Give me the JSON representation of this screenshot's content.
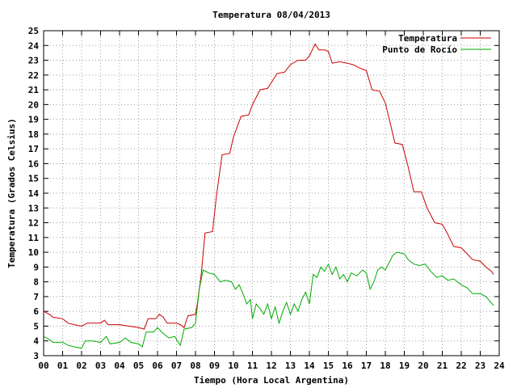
{
  "chart_data": {
    "type": "line",
    "title": "Temperatura 08/04/2013",
    "xlabel": "Tiempo (Hora Local Argentina)",
    "ylabel": "Temperatura (Grados Celsius)",
    "xlim": [
      0,
      24
    ],
    "ylim": [
      3,
      25
    ],
    "x_ticks": [
      "00",
      "01",
      "02",
      "03",
      "04",
      "05",
      "06",
      "07",
      "08",
      "09",
      "10",
      "11",
      "12",
      "13",
      "14",
      "15",
      "16",
      "17",
      "18",
      "19",
      "20",
      "21",
      "22",
      "23",
      "24"
    ],
    "y_ticks": [
      3,
      4,
      5,
      6,
      7,
      8,
      9,
      10,
      11,
      12,
      13,
      14,
      15,
      16,
      17,
      18,
      19,
      20,
      21,
      22,
      23,
      24,
      25
    ],
    "grid": true,
    "legend_position": "top-right",
    "series": [
      {
        "name": "Temperatura",
        "color": "#cc0000",
        "points": [
          [
            0.0,
            6.0
          ],
          [
            0.3,
            5.8
          ],
          [
            0.5,
            5.6
          ],
          [
            1.0,
            5.5
          ],
          [
            1.3,
            5.2
          ],
          [
            1.6,
            5.1
          ],
          [
            2.0,
            5.0
          ],
          [
            2.3,
            5.2
          ],
          [
            3.0,
            5.2
          ],
          [
            3.2,
            5.4
          ],
          [
            3.4,
            5.1
          ],
          [
            4.0,
            5.1
          ],
          [
            4.5,
            5.0
          ],
          [
            5.0,
            4.9
          ],
          [
            5.3,
            4.8
          ],
          [
            5.5,
            5.5
          ],
          [
            5.9,
            5.5
          ],
          [
            6.1,
            5.8
          ],
          [
            6.3,
            5.6
          ],
          [
            6.5,
            5.2
          ],
          [
            7.0,
            5.2
          ],
          [
            7.2,
            5.1
          ],
          [
            7.4,
            4.9
          ],
          [
            7.6,
            5.7
          ],
          [
            8.0,
            5.8
          ],
          [
            8.1,
            6.5
          ],
          [
            8.3,
            8.5
          ],
          [
            8.5,
            11.3
          ],
          [
            8.9,
            11.4
          ],
          [
            9.1,
            13.8
          ],
          [
            9.4,
            16.6
          ],
          [
            9.8,
            16.7
          ],
          [
            10.0,
            17.8
          ],
          [
            10.4,
            19.2
          ],
          [
            10.8,
            19.3
          ],
          [
            11.0,
            20.0
          ],
          [
            11.4,
            21.0
          ],
          [
            11.8,
            21.1
          ],
          [
            12.0,
            21.5
          ],
          [
            12.3,
            22.1
          ],
          [
            12.7,
            22.2
          ],
          [
            13.0,
            22.7
          ],
          [
            13.4,
            23.0
          ],
          [
            13.8,
            23.0
          ],
          [
            14.0,
            23.3
          ],
          [
            14.3,
            24.1
          ],
          [
            14.5,
            23.7
          ],
          [
            14.8,
            23.7
          ],
          [
            15.0,
            23.6
          ],
          [
            15.2,
            22.8
          ],
          [
            15.6,
            22.9
          ],
          [
            16.0,
            22.8
          ],
          [
            16.3,
            22.7
          ],
          [
            16.6,
            22.5
          ],
          [
            17.0,
            22.3
          ],
          [
            17.3,
            21.0
          ],
          [
            17.7,
            20.9
          ],
          [
            18.0,
            20.1
          ],
          [
            18.3,
            18.5
          ],
          [
            18.5,
            17.4
          ],
          [
            18.9,
            17.3
          ],
          [
            19.2,
            15.8
          ],
          [
            19.5,
            14.1
          ],
          [
            19.9,
            14.1
          ],
          [
            20.2,
            13.0
          ],
          [
            20.6,
            12.0
          ],
          [
            21.0,
            11.9
          ],
          [
            21.3,
            11.2
          ],
          [
            21.6,
            10.4
          ],
          [
            22.0,
            10.3
          ],
          [
            22.3,
            9.9
          ],
          [
            22.6,
            9.5
          ],
          [
            23.0,
            9.4
          ],
          [
            23.3,
            9.0
          ],
          [
            23.6,
            8.7
          ],
          [
            23.7,
            8.5
          ]
        ]
      },
      {
        "name": "Punto de Rocío",
        "color": "#00aa00",
        "points": [
          [
            0.0,
            4.3
          ],
          [
            0.3,
            4.1
          ],
          [
            0.5,
            3.9
          ],
          [
            1.0,
            3.9
          ],
          [
            1.3,
            3.7
          ],
          [
            1.6,
            3.6
          ],
          [
            2.0,
            3.5
          ],
          [
            2.2,
            4.0
          ],
          [
            2.6,
            4.0
          ],
          [
            3.0,
            3.9
          ],
          [
            3.3,
            4.3
          ],
          [
            3.5,
            3.8
          ],
          [
            4.0,
            3.9
          ],
          [
            4.3,
            4.2
          ],
          [
            4.6,
            3.9
          ],
          [
            5.0,
            3.8
          ],
          [
            5.2,
            3.6
          ],
          [
            5.4,
            4.6
          ],
          [
            5.8,
            4.6
          ],
          [
            6.0,
            4.9
          ],
          [
            6.3,
            4.5
          ],
          [
            6.6,
            4.2
          ],
          [
            6.9,
            4.3
          ],
          [
            7.2,
            3.7
          ],
          [
            7.4,
            4.8
          ],
          [
            7.8,
            4.9
          ],
          [
            8.0,
            5.2
          ],
          [
            8.2,
            7.5
          ],
          [
            8.4,
            8.8
          ],
          [
            8.7,
            8.6
          ],
          [
            9.0,
            8.5
          ],
          [
            9.3,
            8.0
          ],
          [
            9.6,
            8.1
          ],
          [
            9.9,
            8.0
          ],
          [
            10.1,
            7.5
          ],
          [
            10.3,
            7.8
          ],
          [
            10.5,
            7.2
          ],
          [
            10.7,
            6.5
          ],
          [
            10.9,
            6.8
          ],
          [
            11.0,
            5.5
          ],
          [
            11.2,
            6.5
          ],
          [
            11.4,
            6.2
          ],
          [
            11.6,
            5.8
          ],
          [
            11.8,
            6.5
          ],
          [
            12.0,
            5.5
          ],
          [
            12.2,
            6.3
          ],
          [
            12.4,
            5.2
          ],
          [
            12.6,
            6.0
          ],
          [
            12.8,
            6.6
          ],
          [
            13.0,
            5.8
          ],
          [
            13.2,
            6.5
          ],
          [
            13.4,
            6.0
          ],
          [
            13.6,
            6.8
          ],
          [
            13.8,
            7.3
          ],
          [
            14.0,
            6.5
          ],
          [
            14.2,
            8.5
          ],
          [
            14.4,
            8.3
          ],
          [
            14.6,
            9.0
          ],
          [
            14.8,
            8.7
          ],
          [
            15.0,
            9.2
          ],
          [
            15.2,
            8.5
          ],
          [
            15.4,
            9.0
          ],
          [
            15.6,
            8.2
          ],
          [
            15.8,
            8.5
          ],
          [
            16.0,
            8.0
          ],
          [
            16.2,
            8.6
          ],
          [
            16.5,
            8.4
          ],
          [
            16.8,
            8.8
          ],
          [
            17.0,
            8.6
          ],
          [
            17.2,
            7.5
          ],
          [
            17.4,
            8.0
          ],
          [
            17.6,
            8.8
          ],
          [
            17.8,
            9.0
          ],
          [
            18.0,
            8.8
          ],
          [
            18.2,
            9.3
          ],
          [
            18.4,
            9.8
          ],
          [
            18.6,
            10.0
          ],
          [
            19.0,
            9.9
          ],
          [
            19.2,
            9.5
          ],
          [
            19.5,
            9.2
          ],
          [
            19.8,
            9.1
          ],
          [
            20.1,
            9.2
          ],
          [
            20.4,
            8.7
          ],
          [
            20.7,
            8.3
          ],
          [
            21.0,
            8.4
          ],
          [
            21.3,
            8.1
          ],
          [
            21.6,
            8.2
          ],
          [
            22.0,
            7.8
          ],
          [
            22.3,
            7.6
          ],
          [
            22.6,
            7.2
          ],
          [
            23.0,
            7.2
          ],
          [
            23.3,
            7.0
          ],
          [
            23.5,
            6.7
          ],
          [
            23.7,
            6.4
          ]
        ]
      }
    ]
  }
}
